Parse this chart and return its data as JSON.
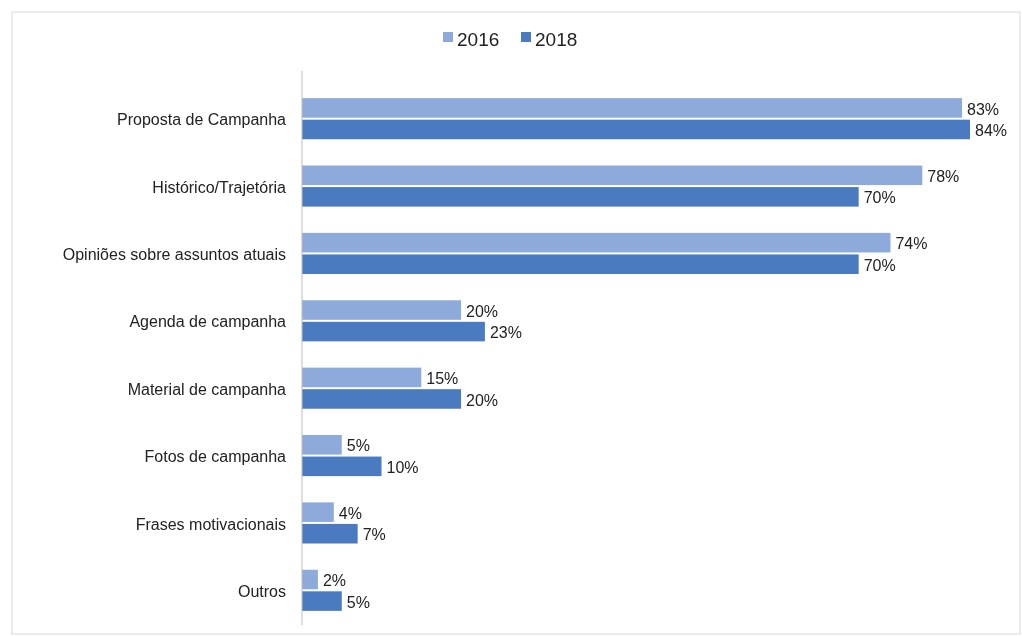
{
  "chart_data": {
    "type": "bar",
    "orientation": "horizontal",
    "categories": [
      "Proposta de Campanha",
      "Histórico/Trajetória",
      "Opiniões sobre assuntos atuais",
      "Agenda de campanha",
      "Material de campanha",
      "Fotos de campanha",
      "Frases motivacionais",
      "Outros"
    ],
    "series": [
      {
        "name": "2016",
        "color": "#8eaadb",
        "values": [
          83,
          78,
          74,
          20,
          15,
          5,
          4,
          2
        ],
        "value_labels": [
          "83%",
          "78%",
          "74%",
          "20%",
          "15%",
          "5%",
          "4%",
          "2%"
        ]
      },
      {
        "name": "2018",
        "color": "#4a7bc1",
        "values": [
          84,
          70,
          70,
          23,
          20,
          10,
          7,
          5
        ],
        "value_labels": [
          "84%",
          "70%",
          "70%",
          "23%",
          "20%",
          "10%",
          "7%",
          "5%"
        ]
      }
    ],
    "tick_labels": "y",
    "legend": "top",
    "grid": false
  }
}
